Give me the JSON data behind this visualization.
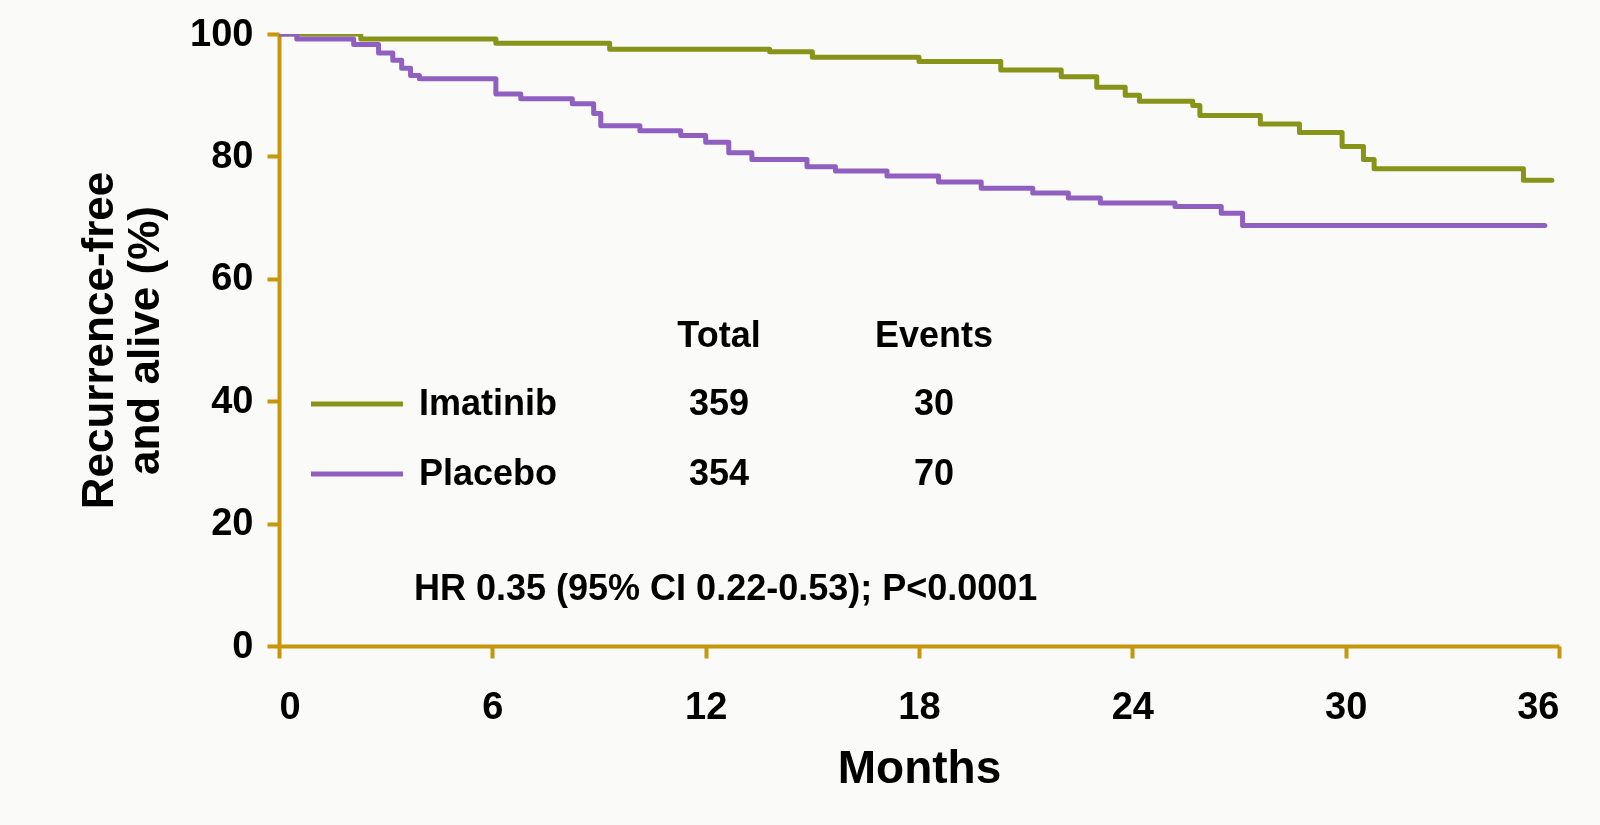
{
  "chart_data": {
    "type": "step",
    "xlabel": "Months",
    "ylabel": "Recurrence-free and alive (%)",
    "xlim": [
      0,
      36
    ],
    "xticks": [
      0,
      6,
      12,
      18,
      24,
      30,
      36
    ],
    "ylim": [
      0,
      100
    ],
    "yticks": [
      0,
      20,
      40,
      60,
      80,
      100
    ],
    "grid": false,
    "legend": "left",
    "series": [
      {
        "name": "Imatinib",
        "color": "#879419",
        "x": [
          0,
          2.3,
          6.1,
          9.3,
          13.8,
          15.0,
          18.0,
          20.3,
          22.0,
          23.0,
          23.8,
          24.2,
          25.7,
          25.9,
          27.6,
          28.7,
          29.9,
          30.5,
          30.8,
          35.0,
          35.8
        ],
        "values": [
          100,
          99.2,
          98.5,
          97.5,
          97.1,
          96.2,
          95.5,
          94.1,
          93.0,
          91.3,
          90.0,
          89.0,
          88.3,
          86.7,
          85.3,
          83.9,
          81.6,
          79.5,
          78.0,
          76.1,
          76.1
        ]
      },
      {
        "name": "Placebo",
        "color": "#9060c0",
        "x": [
          0,
          0.5,
          2.1,
          2.8,
          3.2,
          3.45,
          3.7,
          3.95,
          6.1,
          6.8,
          8.25,
          8.85,
          9.05,
          10.15,
          11.3,
          12.0,
          12.65,
          13.3,
          14.85,
          15.65,
          17.1,
          18.55,
          19.75,
          21.2,
          22.2,
          23.1,
          25.2,
          26.5,
          27.1,
          35.6
        ],
        "values": [
          100,
          99.2,
          98.3,
          96.9,
          95.7,
          94.4,
          93.2,
          92.7,
          90.2,
          89.4,
          88.6,
          87.0,
          85.0,
          84.2,
          83.4,
          82.3,
          80.6,
          79.5,
          78.3,
          77.6,
          76.8,
          75.8,
          74.8,
          74.0,
          73.2,
          72.4,
          71.8,
          70.7,
          68.7,
          68.7
        ]
      }
    ],
    "annotations": [
      "Total",
      "Events",
      "359",
      "30",
      "354",
      "70",
      "HR 0.35 (95% CI 0.22-0.53); P<0.0001"
    ]
  }
}
